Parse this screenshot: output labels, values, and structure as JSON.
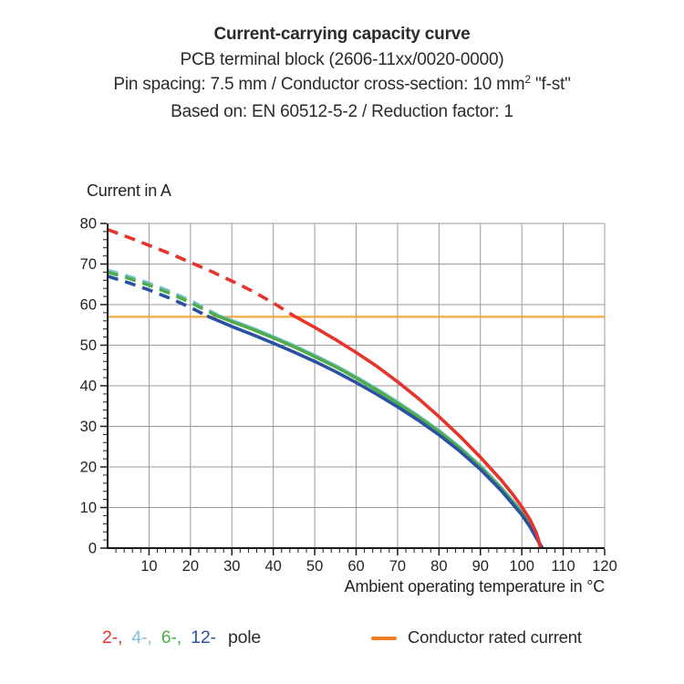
{
  "header": {
    "title": "Current-carrying capacity curve",
    "line2": "PCB terminal block (2606-11xx/0020-0000)",
    "line3_prefix": "Pin spacing: 7.5 mm / Conductor cross-section: 10 mm",
    "line3_sup": "2",
    "line3_suffix": " \"f-st\"",
    "line4": "Based on: EN 60512-5-2 / Reduction factor: 1"
  },
  "chart_data": {
    "type": "line",
    "title": "Current-carrying capacity curve",
    "xlabel": "Ambient operating temperature in °C",
    "ylabel": "Current in A",
    "xlim": [
      0,
      120
    ],
    "ylim": [
      0,
      80
    ],
    "x_tick_labels": [
      10,
      20,
      30,
      40,
      50,
      60,
      70,
      80,
      90,
      100,
      110,
      120
    ],
    "y_tick_labels": [
      0,
      10,
      20,
      30,
      40,
      50,
      60,
      70,
      80
    ],
    "grid_step": 10,
    "minor_tick_step": 2,
    "grid_color": "#9b9b9b",
    "axis_color": "#1a1a1a",
    "tick_label_color": "#242424",
    "rated_current_line": {
      "value": 57,
      "color": "#f3a93c",
      "label": "Conductor rated current"
    },
    "series": [
      {
        "name": "4-pole",
        "color": "#7fc3da",
        "dash_until_x": 27,
        "points": [
          [
            0,
            68.5
          ],
          [
            5,
            67.0
          ],
          [
            10,
            65.3
          ],
          [
            15,
            63.3
          ],
          [
            20,
            61.0
          ],
          [
            27,
            57.2
          ],
          [
            30,
            56.1
          ],
          [
            35,
            54.2
          ],
          [
            40,
            52.1
          ],
          [
            45,
            49.9
          ],
          [
            50,
            47.5
          ],
          [
            55,
            45.0
          ],
          [
            60,
            42.2
          ],
          [
            65,
            39.2
          ],
          [
            70,
            36.0
          ],
          [
            75,
            32.6
          ],
          [
            80,
            29.0
          ],
          [
            85,
            24.9
          ],
          [
            90,
            20.3
          ],
          [
            95,
            15.0
          ],
          [
            100,
            9.0
          ],
          [
            102,
            6.0
          ],
          [
            104,
            2.4
          ],
          [
            104.6,
            0
          ]
        ]
      },
      {
        "name": "6-pole",
        "color": "#4ead49",
        "dash_until_x": 26.5,
        "points": [
          [
            0,
            68.0
          ],
          [
            5,
            66.5
          ],
          [
            10,
            64.8
          ],
          [
            15,
            62.8
          ],
          [
            20,
            60.5
          ],
          [
            26.5,
            57.2
          ],
          [
            30,
            55.8
          ],
          [
            35,
            53.9
          ],
          [
            40,
            51.8
          ],
          [
            45,
            49.6
          ],
          [
            50,
            47.2
          ],
          [
            55,
            44.7
          ],
          [
            60,
            41.9
          ],
          [
            65,
            38.9
          ],
          [
            70,
            35.7
          ],
          [
            75,
            32.3
          ],
          [
            80,
            28.7
          ],
          [
            85,
            24.6
          ],
          [
            90,
            20.0
          ],
          [
            95,
            14.7
          ],
          [
            100,
            8.7
          ],
          [
            102,
            5.7
          ],
          [
            104,
            2.1
          ],
          [
            104.7,
            0
          ]
        ]
      },
      {
        "name": "12-pole",
        "color": "#2b51a3",
        "dash_until_x": 24,
        "points": [
          [
            0,
            67.0
          ],
          [
            5,
            65.4
          ],
          [
            10,
            63.6
          ],
          [
            15,
            61.6
          ],
          [
            20,
            59.3
          ],
          [
            24,
            57.2
          ],
          [
            30,
            54.6
          ],
          [
            35,
            52.6
          ],
          [
            40,
            50.5
          ],
          [
            45,
            48.3
          ],
          [
            50,
            46.0
          ],
          [
            55,
            43.5
          ],
          [
            60,
            40.8
          ],
          [
            65,
            37.9
          ],
          [
            70,
            34.8
          ],
          [
            75,
            31.5
          ],
          [
            80,
            27.9
          ],
          [
            85,
            23.9
          ],
          [
            90,
            19.4
          ],
          [
            95,
            14.2
          ],
          [
            100,
            8.2
          ],
          [
            102,
            5.2
          ],
          [
            104,
            1.6
          ],
          [
            105,
            0
          ]
        ]
      },
      {
        "name": "2-pole",
        "color": "#e6342b",
        "dash_until_x": 45,
        "points": [
          [
            0,
            78.5
          ],
          [
            5,
            76.6
          ],
          [
            10,
            74.6
          ],
          [
            15,
            72.6
          ],
          [
            20,
            70.4
          ],
          [
            25,
            68.2
          ],
          [
            30,
            65.8
          ],
          [
            35,
            63.3
          ],
          [
            40,
            60.4
          ],
          [
            45,
            57.2
          ],
          [
            50,
            54.4
          ],
          [
            55,
            51.4
          ],
          [
            60,
            48.2
          ],
          [
            65,
            44.8
          ],
          [
            70,
            41.0
          ],
          [
            75,
            36.9
          ],
          [
            80,
            32.4
          ],
          [
            85,
            27.6
          ],
          [
            90,
            22.4
          ],
          [
            95,
            16.8
          ],
          [
            98,
            13.0
          ],
          [
            100,
            10.2
          ],
          [
            102,
            7.0
          ],
          [
            103.5,
            3.8
          ],
          [
            104.5,
            0
          ]
        ]
      }
    ],
    "legend_position": "bottom"
  },
  "legend": {
    "pole_items": [
      {
        "label": "2-,",
        "color": "#e6342b"
      },
      {
        "label": "4-,",
        "color": "#82c3d8"
      },
      {
        "label": "6-,",
        "color": "#4ead49"
      },
      {
        "label": "12-",
        "color": "#2b51a3"
      }
    ],
    "pole_word": "pole",
    "rated_label": "Conductor rated current",
    "rated_swatch_color": "#ee7f22"
  }
}
